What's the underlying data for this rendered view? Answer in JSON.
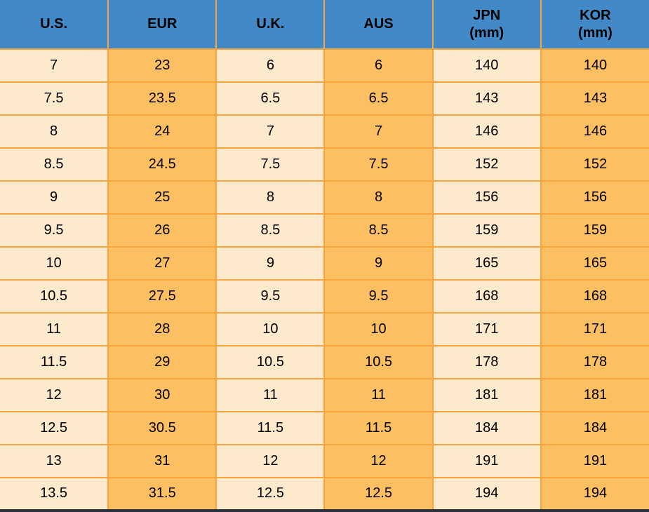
{
  "chart_data": {
    "type": "table",
    "columns": [
      {
        "label": "U.S.",
        "unit": ""
      },
      {
        "label": "EUR",
        "unit": ""
      },
      {
        "label": "U.K.",
        "unit": ""
      },
      {
        "label": "AUS",
        "unit": ""
      },
      {
        "label": "JPN",
        "unit": "(mm)"
      },
      {
        "label": "KOR",
        "unit": "(mm)"
      }
    ],
    "rows": [
      [
        "7",
        "23",
        "6",
        "6",
        "140",
        "140"
      ],
      [
        "7.5",
        "23.5",
        "6.5",
        "6.5",
        "143",
        "143"
      ],
      [
        "8",
        "24",
        "7",
        "7",
        "146",
        "146"
      ],
      [
        "8.5",
        "24.5",
        "7.5",
        "7.5",
        "152",
        "152"
      ],
      [
        "9",
        "25",
        "8",
        "8",
        "156",
        "156"
      ],
      [
        "9.5",
        "26",
        "8.5",
        "8.5",
        "159",
        "159"
      ],
      [
        "10",
        "27",
        "9",
        "9",
        "165",
        "165"
      ],
      [
        "10.5",
        "27.5",
        "9.5",
        "9.5",
        "168",
        "168"
      ],
      [
        "11",
        "28",
        "10",
        "10",
        "171",
        "171"
      ],
      [
        "11.5",
        "29",
        "10.5",
        "10.5",
        "178",
        "178"
      ],
      [
        "12",
        "30",
        "11",
        "11",
        "181",
        "181"
      ],
      [
        "12.5",
        "30.5",
        "11.5",
        "11.5",
        "184",
        "184"
      ],
      [
        "13",
        "31",
        "12",
        "12",
        "191",
        "191"
      ],
      [
        "13.5",
        "31.5",
        "12.5",
        "12.5",
        "194",
        "194"
      ]
    ]
  },
  "colors": {
    "header_bg": "#4189C7",
    "cell_light": "#FDEACD",
    "cell_orange": "#FCC062",
    "grid": "#F9A43C",
    "text": "#000000",
    "bottom_bar": "#29323B"
  }
}
